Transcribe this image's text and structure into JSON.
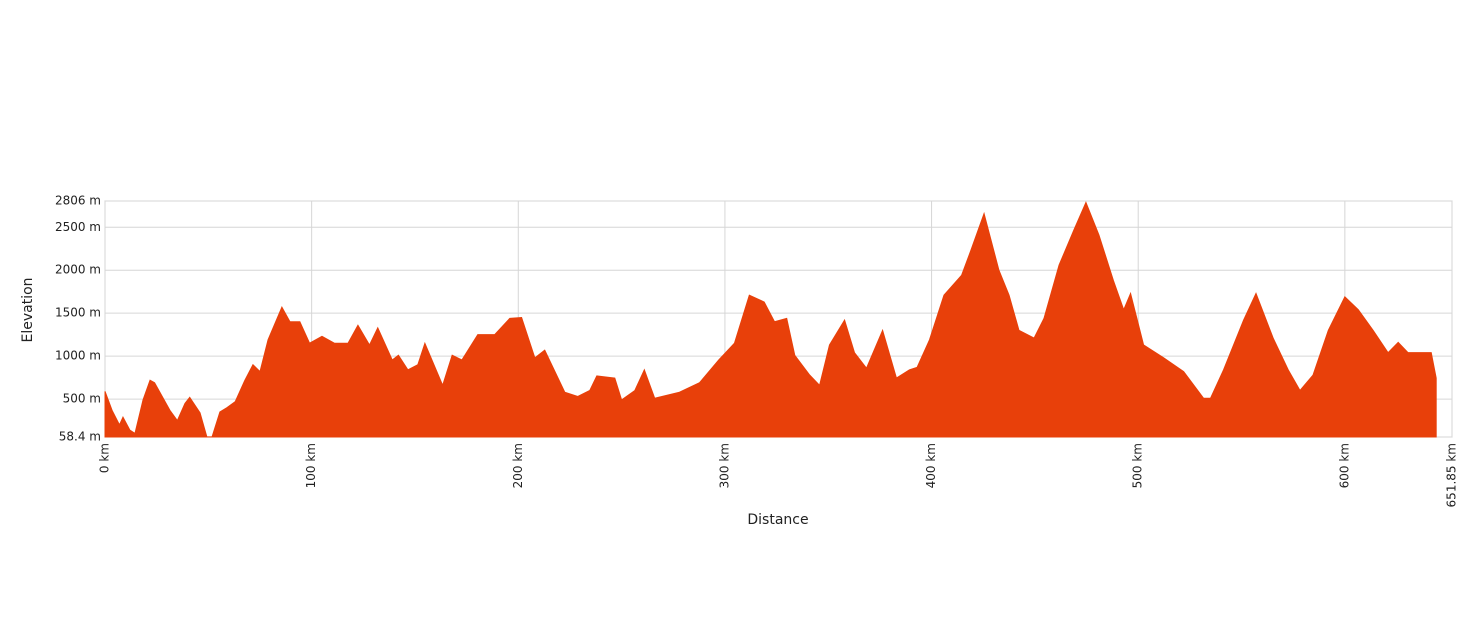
{
  "chart_data": {
    "type": "area",
    "x_label": "Distance",
    "y_label": "Elevation",
    "color": "#e8400a",
    "grid": true,
    "x": [
      0,
      3.4,
      7,
      8.7,
      12,
      14.5,
      18.4,
      21.8,
      24,
      31.4,
      35,
      38.7,
      41,
      46,
      49.3,
      51.8,
      55.6,
      59,
      63,
      67.7,
      71.6,
      75,
      78.9,
      85.6,
      89.5,
      94.3,
      99,
      105,
      111,
      117.6,
      122.4,
      128,
      132,
      139,
      142,
      146.6,
      151.4,
      154.8,
      163.4,
      168,
      172.7,
      180.4,
      188.6,
      195.9,
      201.6,
      208,
      212.8,
      222.5,
      228.8,
      234.6,
      238,
      246.7,
      250,
      256.4,
      261,
      266,
      278,
      287.7,
      297,
      304.6,
      311.8,
      319,
      324,
      329.9,
      333.8,
      341,
      345.8,
      350.6,
      357.9,
      362.7,
      368.5,
      376.3,
      383,
      389.3,
      393,
      399,
      406,
      414.5,
      419,
      425.4,
      432.6,
      437.5,
      442.3,
      449.6,
      454.4,
      461.7,
      468.9,
      474.7,
      481,
      488,
      493,
      496.3,
      502.6,
      512.3,
      522,
      531.6,
      535,
      541.3,
      551,
      557,
      565.3,
      572.6,
      578.3,
      584.6,
      592,
      600,
      606.5,
      613.7,
      620.9,
      625.8,
      630.6,
      637.9,
      641.8,
      644.2
    ],
    "values": [
      590,
      370,
      200,
      290,
      140,
      100,
      490,
      720,
      690,
      370,
      250,
      450,
      520,
      340,
      60,
      60,
      350,
      400,
      470,
      720,
      900,
      820,
      1190,
      1570,
      1400,
      1400,
      1150,
      1230,
      1150,
      1150,
      1360,
      1130,
      1330,
      955,
      1010,
      840,
      900,
      1150,
      660,
      1010,
      955,
      1250,
      1250,
      1440,
      1450,
      980,
      1070,
      580,
      530,
      600,
      770,
      745,
      490,
      600,
      840,
      510,
      580,
      690,
      955,
      1150,
      1710,
      1630,
      1400,
      1440,
      1010,
      780,
      660,
      1130,
      1420,
      1040,
      860,
      1300,
      745,
      840,
      870,
      1190,
      1710,
      1940,
      2230,
      2660,
      2000,
      1710,
      1300,
      1210,
      1440,
      2060,
      2470,
      2790,
      2410,
      1880,
      1540,
      1730,
      1130,
      980,
      820,
      510,
      510,
      840,
      1420,
      1730,
      1210,
      840,
      600,
      780,
      1300,
      1690,
      1540,
      1300,
      1040,
      1160,
      1040,
      1040,
      1040,
      745
    ],
    "xlim": [
      0,
      651.85
    ],
    "xticks": [
      {
        "value": 0,
        "label": "0 km"
      },
      {
        "value": 100,
        "label": "100 km"
      },
      {
        "value": 200,
        "label": "200 km"
      },
      {
        "value": 300,
        "label": "300 km"
      },
      {
        "value": 400,
        "label": "400 km"
      },
      {
        "value": 500,
        "label": "500 km"
      },
      {
        "value": 600,
        "label": "600 km"
      },
      {
        "value": 651.85,
        "label": "651.85 km"
      }
    ],
    "ylim": [
      58.4,
      2806
    ],
    "yticks": [
      {
        "value": 58.4,
        "label": "58.4 m"
      },
      {
        "value": 500,
        "label": "500 m"
      },
      {
        "value": 1000,
        "label": "1000 m"
      },
      {
        "value": 1500,
        "label": "1500 m"
      },
      {
        "value": 2000,
        "label": "2000 m"
      },
      {
        "value": 2500,
        "label": "2500 m"
      },
      {
        "value": 2806,
        "label": "2806 m"
      }
    ]
  }
}
